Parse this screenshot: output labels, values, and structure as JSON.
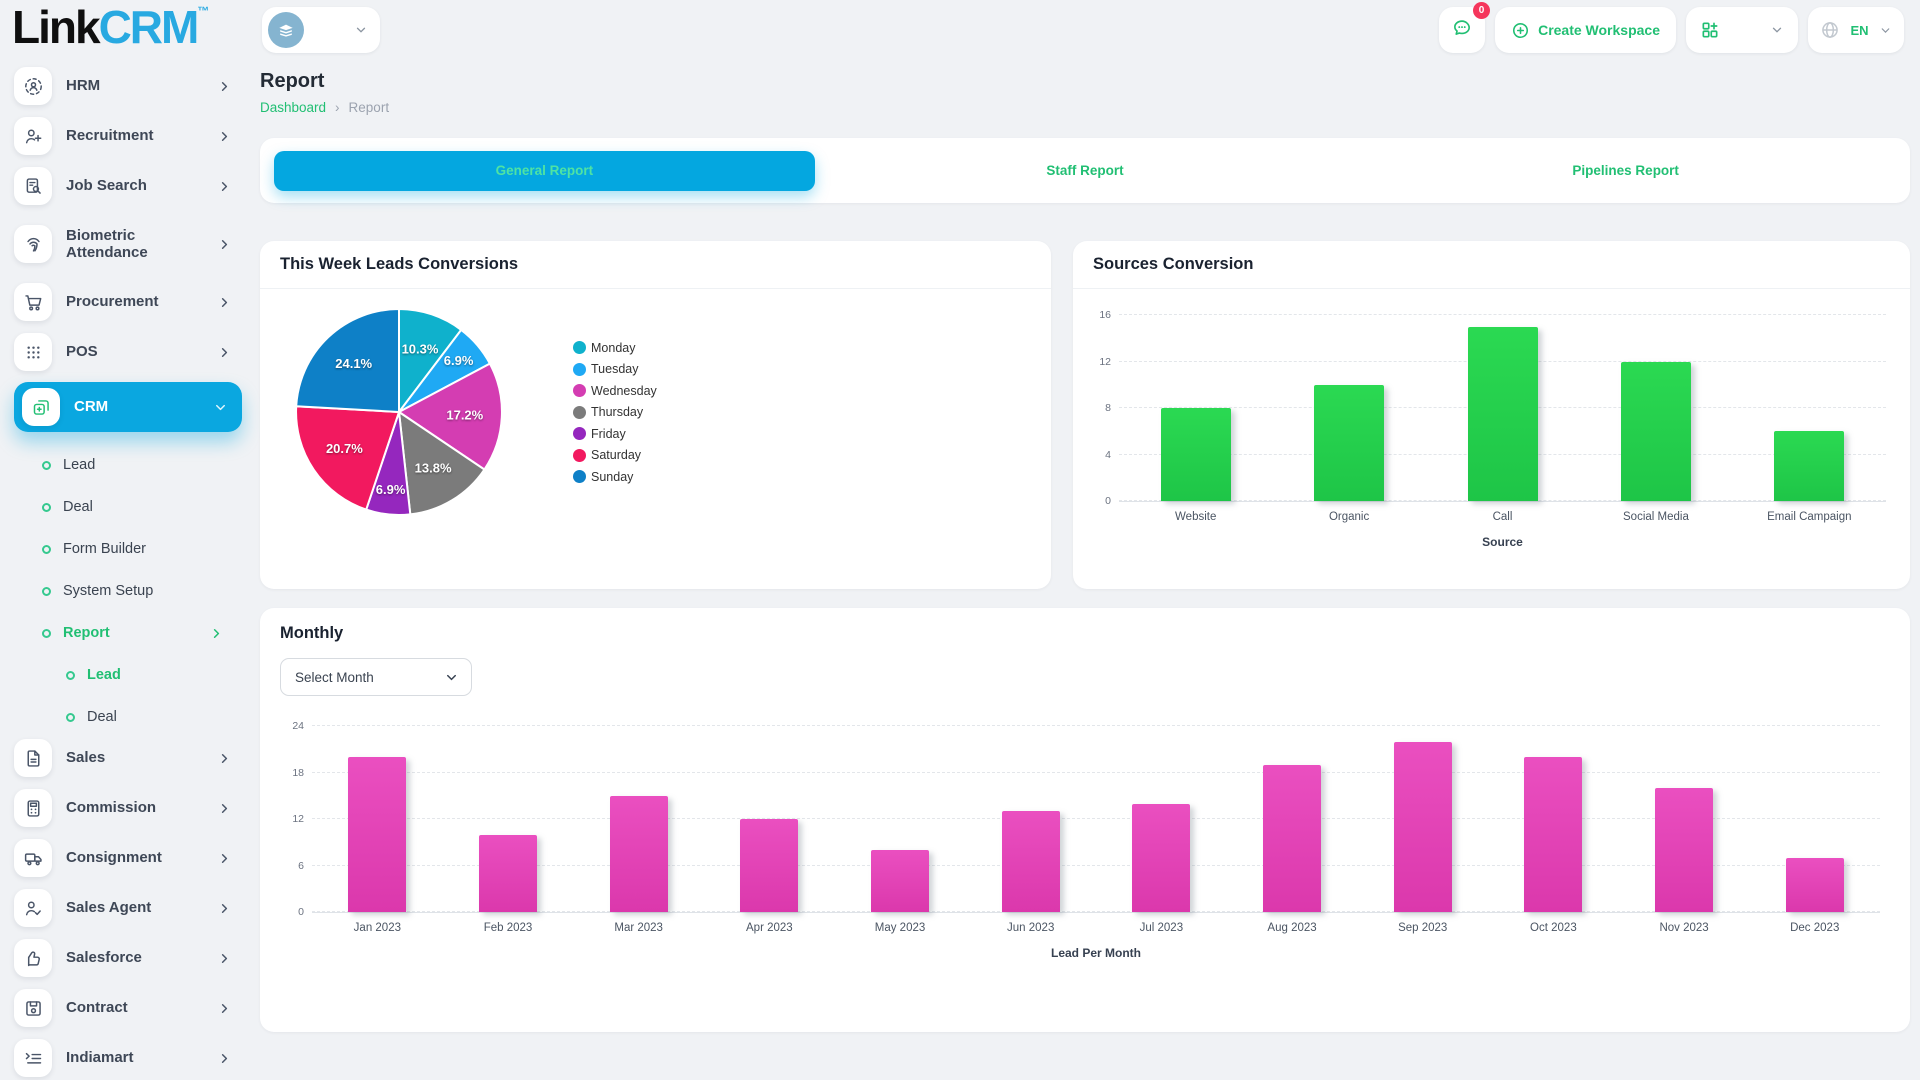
{
  "header": {
    "logo_part1": "Link",
    "logo_part2": "CRM",
    "logo_tm": "™",
    "chat_badge": "0",
    "create_workspace_label": "Create Workspace",
    "language": "EN"
  },
  "sidebar": {
    "items": [
      {
        "label": "HRM",
        "icon": "hrm",
        "type": "main"
      },
      {
        "label": "Recruitment",
        "icon": "recruitment",
        "type": "main"
      },
      {
        "label": "Job Search",
        "icon": "job-search",
        "type": "main"
      },
      {
        "label": "Biometric Attendance",
        "icon": "biometric",
        "type": "main",
        "tall": true
      },
      {
        "label": "Procurement",
        "icon": "procurement",
        "type": "main"
      },
      {
        "label": "POS",
        "icon": "pos",
        "type": "main"
      },
      {
        "label": "CRM",
        "icon": "crm",
        "type": "main",
        "active": true,
        "expanded": true
      },
      {
        "label": "Lead",
        "type": "sub"
      },
      {
        "label": "Deal",
        "type": "sub"
      },
      {
        "label": "Form Builder",
        "type": "sub"
      },
      {
        "label": "System Setup",
        "type": "sub"
      },
      {
        "label": "Report",
        "type": "sub",
        "active": true,
        "has_children": true
      },
      {
        "label": "Lead",
        "type": "subsub",
        "active": true
      },
      {
        "label": "Deal",
        "type": "subsub"
      },
      {
        "label": "Sales",
        "icon": "sales",
        "type": "main"
      },
      {
        "label": "Commission",
        "icon": "commission",
        "type": "main"
      },
      {
        "label": "Consignment",
        "icon": "consignment",
        "type": "main"
      },
      {
        "label": "Sales Agent",
        "icon": "sales-agent",
        "type": "main"
      },
      {
        "label": "Salesforce",
        "icon": "salesforce",
        "type": "main"
      },
      {
        "label": "Contract",
        "icon": "contract",
        "type": "main"
      },
      {
        "label": "Indiamart",
        "icon": "indiamart",
        "type": "main"
      }
    ]
  },
  "page": {
    "title": "Report",
    "breadcrumb_home": "Dashboard",
    "breadcrumb_sep": "›",
    "breadcrumb_current": "Report"
  },
  "tabs": [
    {
      "label": "General Report",
      "active": true
    },
    {
      "label": "Staff Report",
      "active": false
    },
    {
      "label": "Pipelines Report",
      "active": false
    }
  ],
  "monthly": {
    "select_placeholder": "Select Month"
  },
  "colors": {
    "accent_green": "#21bf73",
    "accent_cyan": "#0aa7e0",
    "logo_blue": "#28a9e1",
    "badge_red": "#f5365c",
    "bar_green": "#24ce4b",
    "bar_magenta": "#e243b5"
  },
  "chart_data": [
    {
      "type": "pie",
      "title": "This Week Leads Conversions",
      "labels": [
        "Monday",
        "Tuesday",
        "Wednesday",
        "Thursday",
        "Friday",
        "Saturday",
        "Sunday"
      ],
      "values": [
        10.3,
        6.9,
        17.2,
        13.8,
        6.9,
        20.7,
        24.1
      ],
      "value_labels": [
        "10.3%",
        "6.9%",
        "17.2%",
        "13.8%",
        "6.9%",
        "20.7%",
        "24.1%"
      ],
      "colors": [
        "#0fb1cc",
        "#1fa9f4",
        "#d43db2",
        "#7b7b7b",
        "#9527be",
        "#f2195f",
        "#0e80c7"
      ],
      "legend_position": "right"
    },
    {
      "type": "bar",
      "title": "Sources Conversion",
      "categories": [
        "Website",
        "Organic",
        "Call",
        "Social Media",
        "Email Campaign"
      ],
      "values": [
        8,
        10,
        15,
        12,
        6
      ],
      "xlabel": "Source",
      "ylabel": "",
      "ylim": [
        0,
        16
      ],
      "yticks": [
        0,
        4,
        8,
        12,
        16
      ],
      "bar_color": "#24ce4b",
      "grid": "dashed horizontal"
    },
    {
      "type": "bar",
      "title": "Monthly",
      "categories": [
        "Jan 2023",
        "Feb 2023",
        "Mar 2023",
        "Apr 2023",
        "May 2023",
        "Jun 2023",
        "Jul 2023",
        "Aug 2023",
        "Sep 2023",
        "Oct 2023",
        "Nov 2023",
        "Dec 2023"
      ],
      "values": [
        20,
        10,
        15,
        12,
        8,
        13,
        14,
        19,
        22,
        20,
        16,
        7
      ],
      "xlabel": "Lead Per Month",
      "ylabel": "",
      "ylim": [
        0,
        24
      ],
      "yticks": [
        0,
        6,
        12,
        18,
        24
      ],
      "bar_color": "#e243b5",
      "grid": "dashed horizontal"
    }
  ]
}
